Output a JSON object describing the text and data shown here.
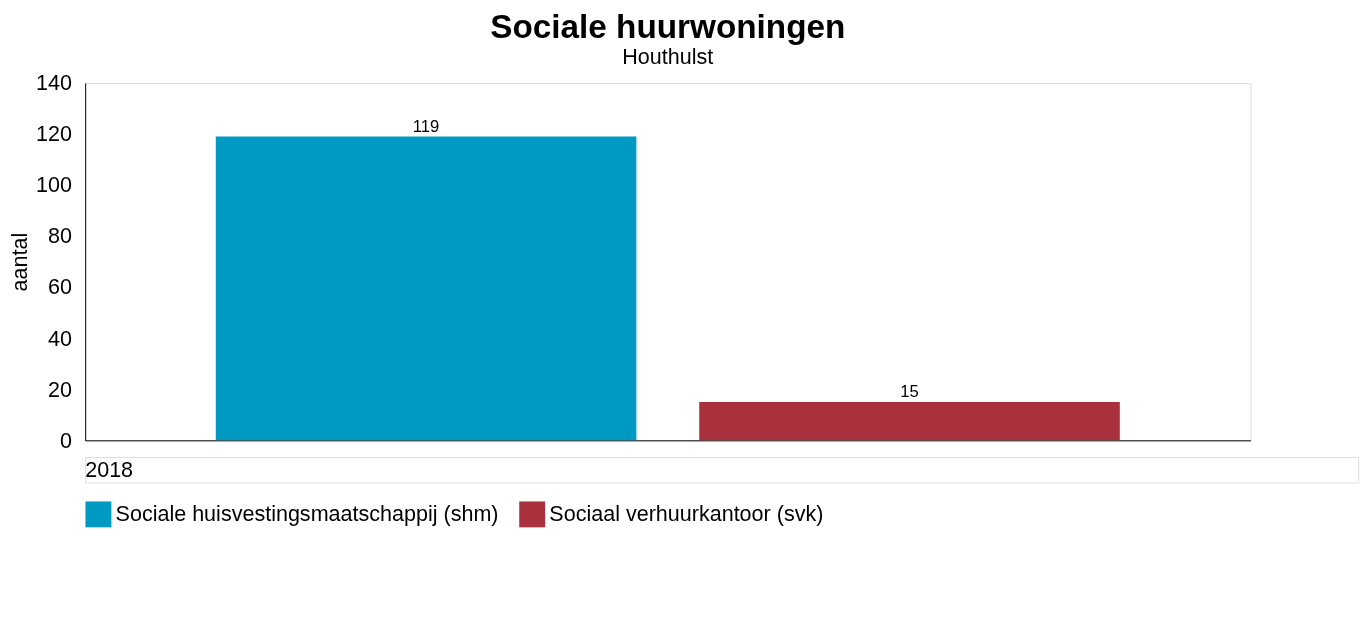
{
  "chart_data": {
    "type": "bar",
    "title": "Sociale huurwoningen",
    "subtitle": "Houthulst",
    "ylabel": "aantal",
    "categories": [
      null
    ],
    "series": [
      {
        "name": "Sociale huisvestingsmaatschappij (shm)",
        "color": "#0099c2",
        "values": [
          119
        ]
      },
      {
        "name": "Sociaal verhuurkantoor (svk)",
        "color": "#a8313d",
        "values": [
          15
        ]
      }
    ],
    "ylim": [
      0,
      140
    ],
    "yticks": [
      0,
      20,
      40,
      60,
      80,
      100,
      120,
      140
    ],
    "grid": false,
    "legend": "bottom",
    "data_labels": true,
    "annotations": [
      "2018"
    ]
  }
}
